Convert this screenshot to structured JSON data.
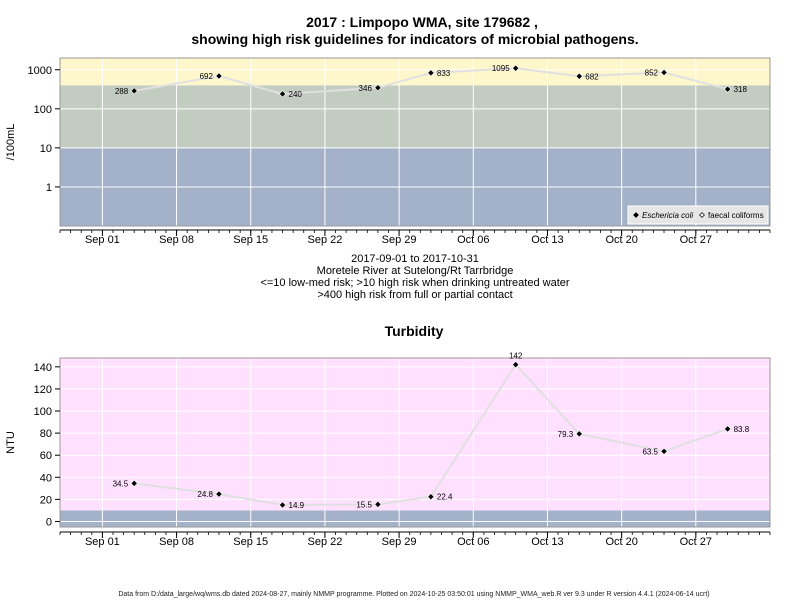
{
  "titles": {
    "line1": "2017 : Limpopo WMA, site 179682 ,",
    "line2": "showing high risk guidelines for indicators of microbial pathogens."
  },
  "info": {
    "date_range": "2017-09-01 to 2017-10-31",
    "river": "Moretele River at Sutelong/Rt Tarrbridge",
    "guideline1": "<=10 low-med risk; >10 high risk when drinking untreated water",
    "guideline2": ">400 high risk from full or partial contact"
  },
  "footer": "Data from D:/data_large/wq/wms.db dated 2024-08-27, mainly NMMP programme. Plotted on 2024-10-25 03:50:01 using NMMP_WMA_web.R ver 9.3 under R version 4.4.1 (2024-06-14 ucrt)",
  "colors": {
    "band_low": "#a3b1c9",
    "band_mid": "#c3ccc1",
    "band_high": "#fff7cc",
    "turbidity_bg": "#ffe0ff",
    "turbidity_low": "#a3b1c9",
    "line": "#e0e0e0",
    "grid": "#ffffff",
    "marker": "#000000"
  },
  "chart_data": [
    {
      "type": "line",
      "title": "",
      "ylabel": "/100mL",
      "yscale": "log",
      "ylim": [
        0.1,
        2000
      ],
      "yticks": [
        1,
        10,
        100,
        1000
      ],
      "ytick_labels": [
        "1",
        "10",
        "100",
        "1000"
      ],
      "bands": [
        {
          "from": 0.1,
          "to": 10,
          "color": "#a3b1c9"
        },
        {
          "from": 10,
          "to": 400,
          "color": "#c3ccc1"
        },
        {
          "from": 400,
          "to": 2000,
          "color": "#fff7cc"
        }
      ],
      "xlim": [
        "2017-08-28",
        "2017-11-03"
      ],
      "xticks": [
        "2017-09-01",
        "2017-09-08",
        "2017-09-15",
        "2017-09-22",
        "2017-09-29",
        "2017-10-06",
        "2017-10-13",
        "2017-10-20",
        "2017-10-27"
      ],
      "xtick_labels": [
        "Sep 01",
        "Sep 08",
        "Sep 15",
        "Sep 22",
        "Sep 29",
        "Oct 06",
        "Oct 13",
        "Oct 20",
        "Oct 27"
      ],
      "grid": true,
      "series": [
        {
          "name": "Eschericia coli",
          "marker": "diamond",
          "points": [
            {
              "x": "2017-09-04",
              "y": 288,
              "label": "288",
              "label_pos": "left"
            },
            {
              "x": "2017-09-12",
              "y": 692,
              "label": "692",
              "label_pos": "left"
            },
            {
              "x": "2017-09-18",
              "y": 240,
              "label": "240",
              "label_pos": "right"
            },
            {
              "x": "2017-09-27",
              "y": 346,
              "label": "346",
              "label_pos": "left"
            },
            {
              "x": "2017-10-02",
              "y": 833,
              "label": "833",
              "label_pos": "right"
            },
            {
              "x": "2017-10-10",
              "y": 1095,
              "label": "1095",
              "label_pos": "left"
            },
            {
              "x": "2017-10-16",
              "y": 682,
              "label": "682",
              "label_pos": "right"
            },
            {
              "x": "2017-10-24",
              "y": 852,
              "label": "852",
              "label_pos": "left"
            },
            {
              "x": "2017-10-30",
              "y": 318,
              "label": "318",
              "label_pos": "right"
            }
          ]
        }
      ],
      "legend": {
        "position": "bottom-right",
        "entries": [
          {
            "label": "Eschericia coli",
            "marker": "filled-diamond",
            "italic": true
          },
          {
            "label": "faecal coliforms",
            "marker": "open-diamond",
            "italic": false
          }
        ]
      }
    },
    {
      "type": "line",
      "title": "Turbidity",
      "ylabel": "NTU",
      "yscale": "linear",
      "ylim": [
        -5,
        148
      ],
      "yticks": [
        0,
        20,
        40,
        60,
        80,
        100,
        120,
        140
      ],
      "ytick_labels": [
        "0",
        "20",
        "40",
        "60",
        "80",
        "100",
        "120",
        "140"
      ],
      "bands": [
        {
          "from": -5,
          "to": 10,
          "color": "#a3b1c9"
        },
        {
          "from": 10,
          "to": 148,
          "color": "#ffe0ff"
        }
      ],
      "xlim": [
        "2017-08-28",
        "2017-11-03"
      ],
      "xticks": [
        "2017-09-01",
        "2017-09-08",
        "2017-09-15",
        "2017-09-22",
        "2017-09-29",
        "2017-10-06",
        "2017-10-13",
        "2017-10-20",
        "2017-10-27"
      ],
      "xtick_labels": [
        "Sep 01",
        "Sep 08",
        "Sep 15",
        "Sep 22",
        "Sep 29",
        "Oct 06",
        "Oct 13",
        "Oct 20",
        "Oct 27"
      ],
      "grid": true,
      "series": [
        {
          "name": "",
          "marker": "diamond",
          "points": [
            {
              "x": "2017-09-04",
              "y": 34.5,
              "label": "34.5",
              "label_pos": "left"
            },
            {
              "x": "2017-09-12",
              "y": 24.8,
              "label": "24.8",
              "label_pos": "left"
            },
            {
              "x": "2017-09-18",
              "y": 14.9,
              "label": "14.9",
              "label_pos": "right"
            },
            {
              "x": "2017-09-27",
              "y": 15.5,
              "label": "15.5",
              "label_pos": "left"
            },
            {
              "x": "2017-10-02",
              "y": 22.4,
              "label": "22.4",
              "label_pos": "right"
            },
            {
              "x": "2017-10-10",
              "y": 142,
              "label": "142",
              "label_pos": "above"
            },
            {
              "x": "2017-10-16",
              "y": 79.3,
              "label": "79.3",
              "label_pos": "left"
            },
            {
              "x": "2017-10-24",
              "y": 63.5,
              "label": "63.5",
              "label_pos": "left"
            },
            {
              "x": "2017-10-30",
              "y": 83.8,
              "label": "83.8",
              "label_pos": "right"
            }
          ]
        }
      ]
    }
  ]
}
